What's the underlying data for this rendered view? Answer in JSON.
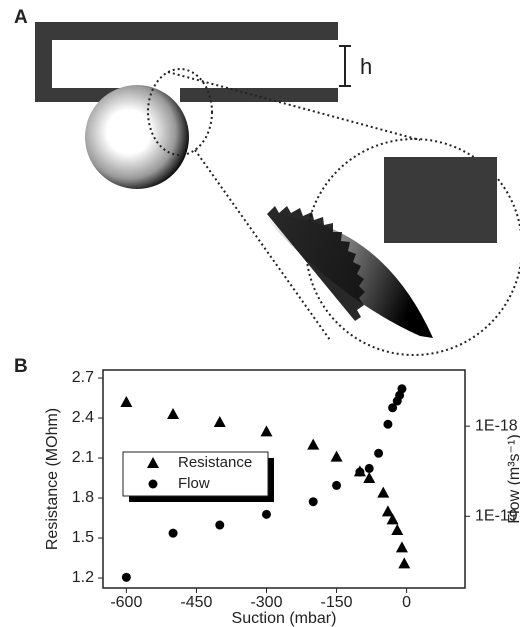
{
  "panel_labels": {
    "a": "A",
    "b": "B"
  },
  "diagram": {
    "height_label": "h"
  },
  "chart_data": {
    "type": "scatter",
    "xlabel": "Suction (mbar)",
    "ylabel": "Resistance (MOhm)",
    "y2label": "Flow (m³s⁻¹)",
    "xlim": [
      -650,
      125
    ],
    "xticks": [
      -600,
      -450,
      -300,
      -150,
      0
    ],
    "ylim": [
      1.125,
      2.76
    ],
    "yticks": [
      1.2,
      1.5,
      1.8,
      2.1,
      2.4,
      2.7
    ],
    "y2lim": [
      1.6e-20,
      4.2e-18
    ],
    "y2scale": "log",
    "y2ticks": [
      {
        "value": 1e-19,
        "label": "1E-19"
      },
      {
        "value": 1e-18,
        "label": "1E-18"
      }
    ],
    "series": [
      {
        "name": "Resistance",
        "marker": "triangle",
        "color": "#000000",
        "x": [
          -600,
          -500,
          -400,
          -300,
          -200,
          -150,
          -100,
          -80,
          -50,
          -40,
          -30,
          -20,
          -10,
          -5
        ],
        "values": [
          2.52,
          2.43,
          2.37,
          2.3,
          2.2,
          2.11,
          2.0,
          1.95,
          1.84,
          1.7,
          1.64,
          1.56,
          1.43,
          1.31
        ]
      },
      {
        "name": "Flow",
        "marker": "circle",
        "color": "#000000",
        "axis": "y2",
        "x": [
          -600,
          -500,
          -400,
          -300,
          -200,
          -150,
          -100,
          -80,
          -60,
          -40,
          -30,
          -20,
          -15,
          -10
        ],
        "values": [
          2.1e-20,
          6.5e-20,
          8e-20,
          1.05e-19,
          1.45e-19,
          2.2e-19,
          3.1e-19,
          3.4e-19,
          5e-19,
          1.05e-18,
          1.6e-18,
          1.9e-18,
          2.2e-18,
          2.6e-18
        ]
      }
    ]
  }
}
